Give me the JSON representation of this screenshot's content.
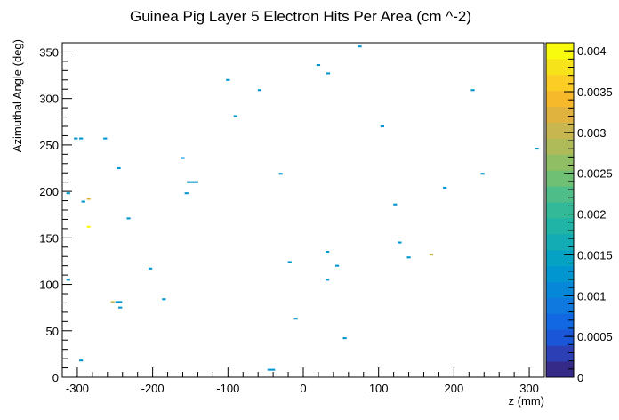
{
  "chart_data": {
    "type": "heatmap",
    "title": "Guinea Pig Layer 5 Electron Hits Per Area (cm ^-2)",
    "xlabel": "z (mm)",
    "ylabel": "Azimuthal Angle (deg)",
    "xlim": [
      -320,
      320
    ],
    "ylim": [
      0,
      360
    ],
    "x_ticks": [
      -300,
      -200,
      -100,
      0,
      100,
      200,
      300
    ],
    "y_ticks": [
      0,
      50,
      100,
      150,
      200,
      250,
      300,
      350
    ],
    "colorbar": {
      "min": 0,
      "max": 0.0041,
      "ticks": [
        0,
        0.0005,
        0.001,
        0.0015,
        0.002,
        0.0025,
        0.003,
        0.0035,
        0.004
      ],
      "tick_labels": [
        "0",
        "0.0005",
        "0.001",
        "0.0015",
        "0.002",
        "0.0025",
        "0.003",
        "0.0035",
        "0.004"
      ],
      "palette": [
        "#352a87",
        "#2c3fb5",
        "#1957d8",
        "#1268e2",
        "#0f79e0",
        "#0787d8",
        "#0196cf",
        "#06a2c3",
        "#13acb4",
        "#1fb4a5",
        "#33b998",
        "#4fbd88",
        "#6fbf75",
        "#8fbe64",
        "#aebb58",
        "#c8b650",
        "#dfb33e",
        "#f5b92b",
        "#fccd25",
        "#f7e31a",
        "#f9fb0e"
      ]
    },
    "bin_size": {
      "x": 5,
      "y": 2
    },
    "cells": [
      {
        "x": 75,
        "y": 356,
        "v": 0.0013
      },
      {
        "x": 20,
        "y": 336,
        "v": 0.0013
      },
      {
        "x": 33,
        "y": 327,
        "v": 0.0013
      },
      {
        "x": -100,
        "y": 320,
        "v": 0.0013
      },
      {
        "x": -58,
        "y": 309,
        "v": 0.0013
      },
      {
        "x": 225,
        "y": 309,
        "v": 0.0013
      },
      {
        "x": -90,
        "y": 281,
        "v": 0.0013
      },
      {
        "x": 105,
        "y": 270,
        "v": 0.0013
      },
      {
        "x": -302,
        "y": 257,
        "v": 0.0013
      },
      {
        "x": -295,
        "y": 257,
        "v": 0.0013
      },
      {
        "x": -263,
        "y": 257,
        "v": 0.0013
      },
      {
        "x": 310,
        "y": 246,
        "v": 0.0013
      },
      {
        "x": -160,
        "y": 236,
        "v": 0.0013
      },
      {
        "x": -245,
        "y": 225,
        "v": 0.0013
      },
      {
        "x": -30,
        "y": 219,
        "v": 0.0013
      },
      {
        "x": 238,
        "y": 219,
        "v": 0.0013
      },
      {
        "x": -152,
        "y": 210,
        "v": 0.0013
      },
      {
        "x": -147,
        "y": 210,
        "v": 0.0013
      },
      {
        "x": -142,
        "y": 210,
        "v": 0.0013
      },
      {
        "x": 188,
        "y": 204,
        "v": 0.0013
      },
      {
        "x": -312,
        "y": 198,
        "v": 0.0013
      },
      {
        "x": -155,
        "y": 198,
        "v": 0.0013
      },
      {
        "x": -285,
        "y": 192,
        "v": 0.0032
      },
      {
        "x": -292,
        "y": 189,
        "v": 0.0013
      },
      {
        "x": 122,
        "y": 186,
        "v": 0.0013
      },
      {
        "x": -232,
        "y": 171,
        "v": 0.0013
      },
      {
        "x": -285,
        "y": 162,
        "v": 0.0041
      },
      {
        "x": 128,
        "y": 145,
        "v": 0.0013
      },
      {
        "x": 32,
        "y": 135,
        "v": 0.0013
      },
      {
        "x": 170,
        "y": 132,
        "v": 0.0031
      },
      {
        "x": 140,
        "y": 129,
        "v": 0.0013
      },
      {
        "x": -18,
        "y": 124,
        "v": 0.0013
      },
      {
        "x": 45,
        "y": 120,
        "v": 0.0013
      },
      {
        "x": -203,
        "y": 117,
        "v": 0.0013
      },
      {
        "x": -312,
        "y": 105,
        "v": 0.0013
      },
      {
        "x": 32,
        "y": 105,
        "v": 0.0013
      },
      {
        "x": -185,
        "y": 84,
        "v": 0.0013
      },
      {
        "x": -253,
        "y": 81,
        "v": 0.0031
      },
      {
        "x": -247,
        "y": 81,
        "v": 0.0013
      },
      {
        "x": -243,
        "y": 81,
        "v": 0.0013
      },
      {
        "x": -243,
        "y": 75,
        "v": 0.0013
      },
      {
        "x": -10,
        "y": 63,
        "v": 0.0013
      },
      {
        "x": 55,
        "y": 42,
        "v": 0.0013
      },
      {
        "x": -295,
        "y": 18,
        "v": 0.0013
      },
      {
        "x": -45,
        "y": 8,
        "v": 0.0013
      },
      {
        "x": -40,
        "y": 8,
        "v": 0.0013
      }
    ]
  }
}
